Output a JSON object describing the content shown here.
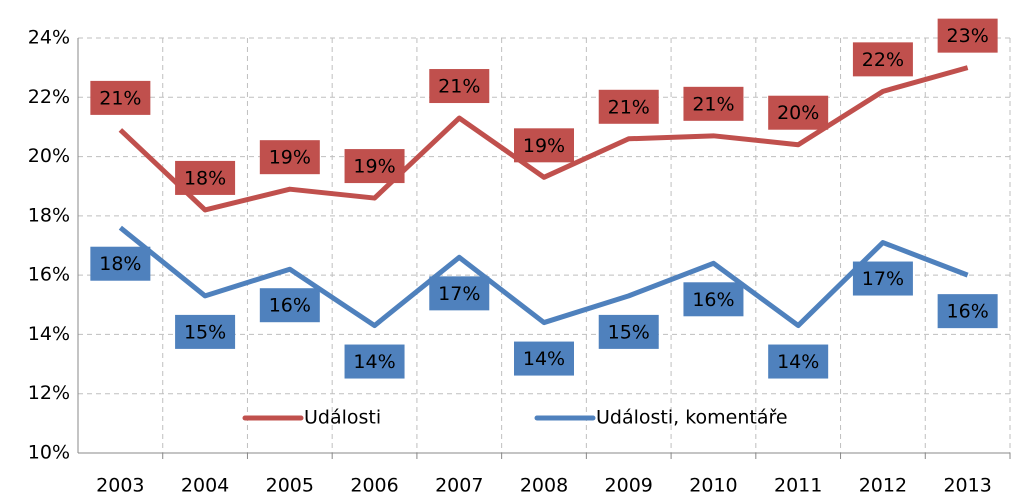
{
  "chart_data": {
    "type": "line",
    "categories": [
      "2003",
      "2004",
      "2005",
      "2006",
      "2007",
      "2008",
      "2009",
      "2010",
      "2011",
      "2012",
      "2013"
    ],
    "series": [
      {
        "name": "Události",
        "color": "#c0504d",
        "values": [
          20.9,
          18.2,
          18.9,
          18.6,
          21.3,
          19.3,
          20.6,
          20.7,
          20.4,
          22.2,
          23.0
        ],
        "value_labels": [
          "21%",
          "18%",
          "19%",
          "19%",
          "21%",
          "19%",
          "21%",
          "21%",
          "20%",
          "22%",
          "23%"
        ]
      },
      {
        "name": "Události, komentáře",
        "color": "#4f81bd",
        "values": [
          17.6,
          15.3,
          16.2,
          14.3,
          16.6,
          14.4,
          15.3,
          16.4,
          14.3,
          17.1,
          16.0
        ],
        "value_labels": [
          "18%",
          "15%",
          "16%",
          "14%",
          "17%",
          "14%",
          "15%",
          "16%",
          "14%",
          "17%",
          "16%"
        ]
      }
    ],
    "ylim": [
      10,
      24
    ],
    "yticks": [
      {
        "value": 10,
        "label": "10%"
      },
      {
        "value": 12,
        "label": "12%"
      },
      {
        "value": 14,
        "label": "14%"
      },
      {
        "value": 16,
        "label": "16%"
      },
      {
        "value": 18,
        "label": "18%"
      },
      {
        "value": 20,
        "label": "20%"
      },
      {
        "value": 22,
        "label": "22%"
      },
      {
        "value": 24,
        "label": "24%"
      }
    ],
    "grid": true,
    "legend": "bottom"
  }
}
